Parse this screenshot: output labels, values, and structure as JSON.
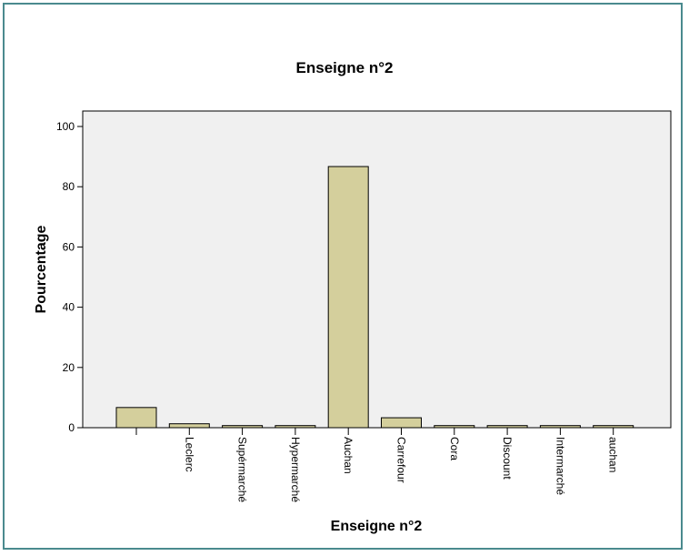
{
  "chart_data": {
    "type": "bar",
    "title": "Enseigne n°2",
    "xlabel": "Enseigne n°2",
    "ylabel": "Pourcentage",
    "ylim": [
      0,
      100
    ],
    "yticks": [
      0,
      20,
      40,
      60,
      80,
      100
    ],
    "categories": [
      "",
      "Leclerc",
      "Supérmarché",
      "Hypermarché",
      "Auchan",
      "Carrefour",
      "Cora",
      "Discount",
      "Intermarché",
      "auchan"
    ],
    "values": [
      6.7,
      1.3,
      0.7,
      0.7,
      86.7,
      3.3,
      0.7,
      0.7,
      0.7,
      0.7
    ],
    "grid": false,
    "colors": {
      "bar_fill": "#d4cf9c",
      "bar_stroke": "#000000",
      "plot_bg": "#f0f0f0",
      "frame": "#4a8a8e"
    }
  }
}
